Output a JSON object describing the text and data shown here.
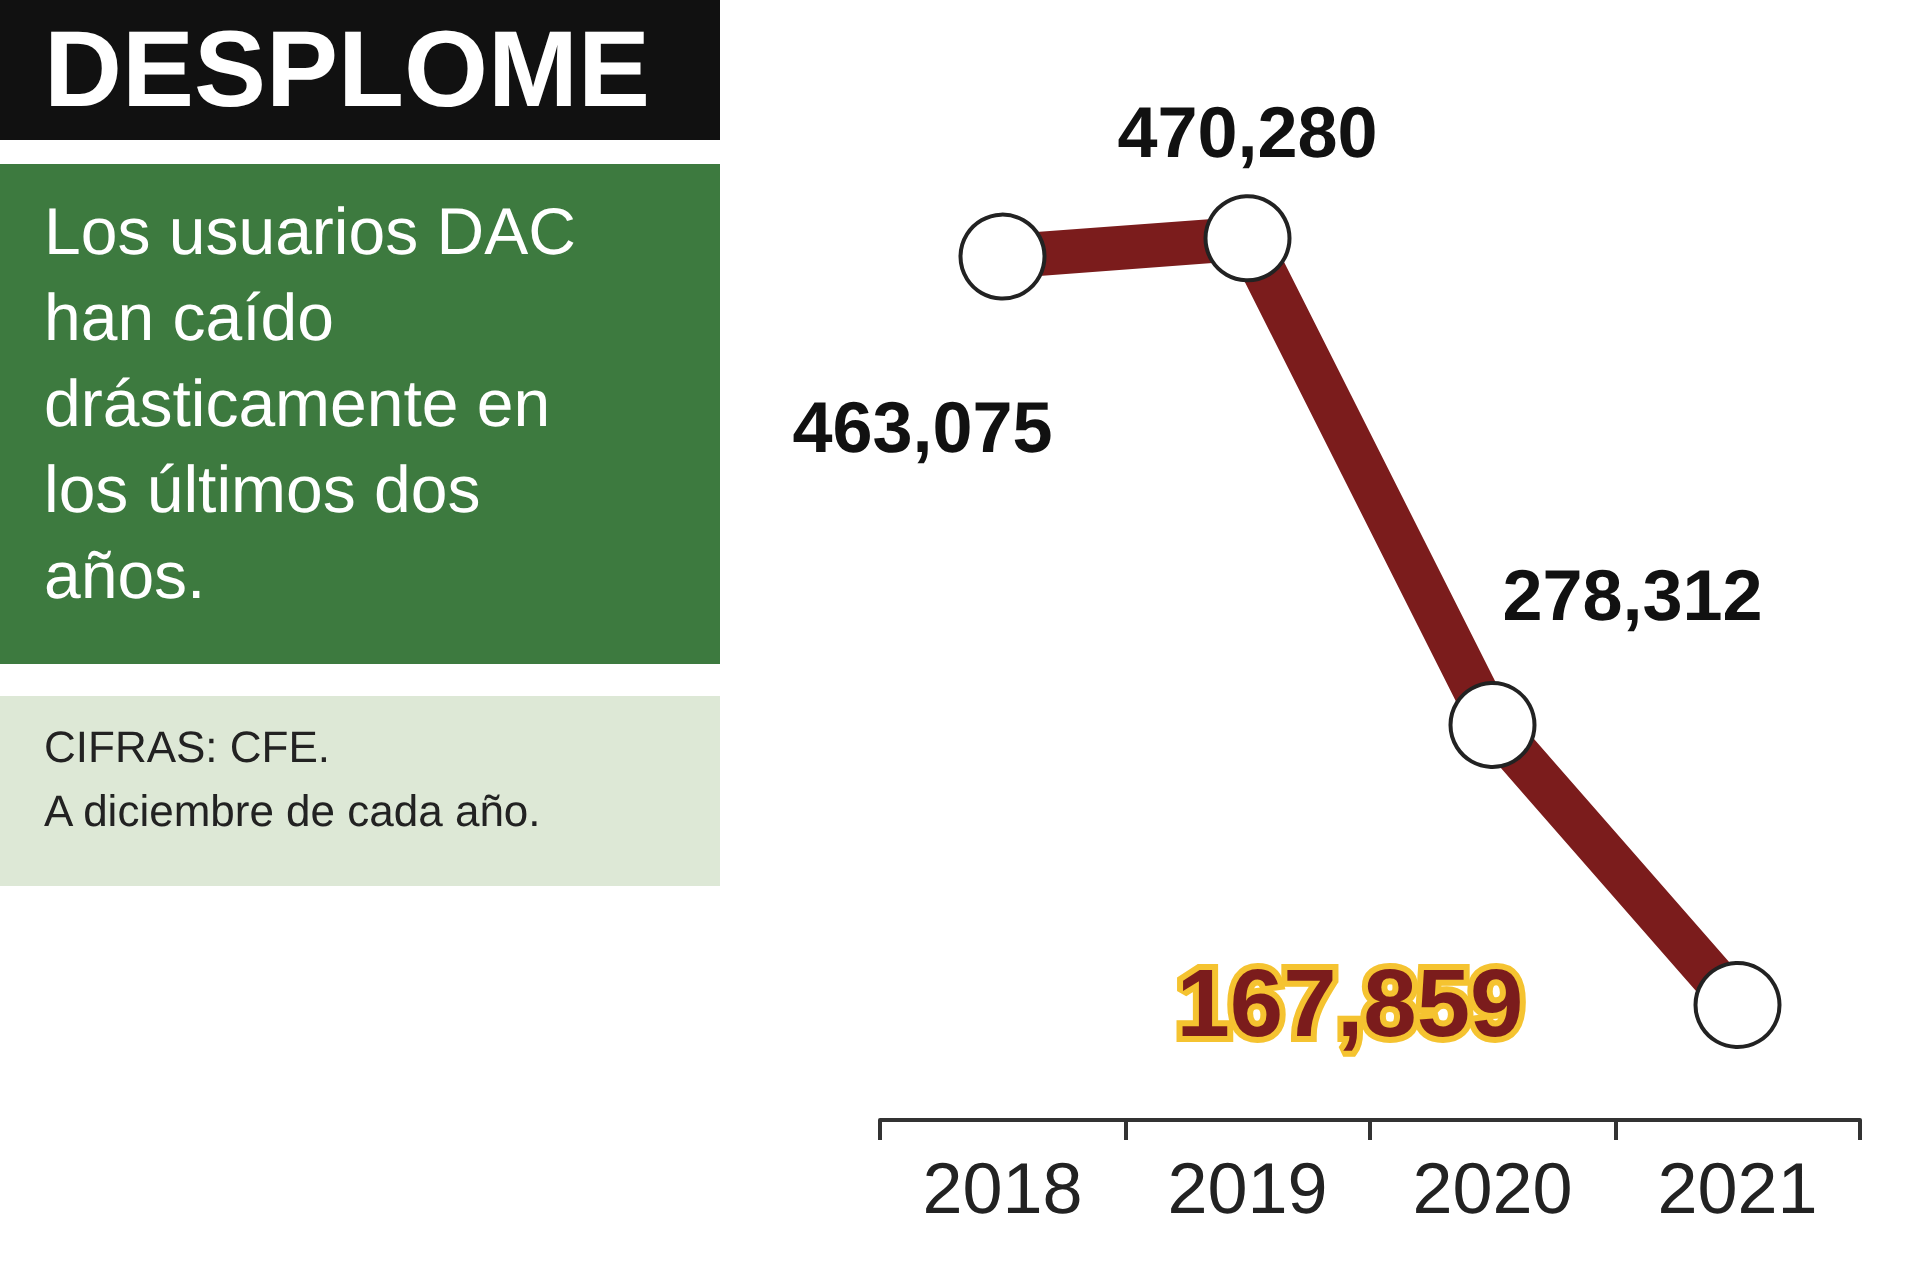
{
  "chart_data": {
    "type": "line",
    "title": "DESPLOME",
    "subtitle": "Los usuarios DAC han caído drásticamente en los últimos dos años.",
    "annotations": [
      "CIFRAS: CFE.",
      "A diciembre de cada año."
    ],
    "categories": [
      "2018",
      "2019",
      "2020",
      "2021"
    ],
    "series": [
      {
        "color": "#7b1c1c",
        "values": [
          463075,
          470280,
          278312,
          167859
        ],
        "value_labels": [
          "463,075",
          "470,280",
          "278,312",
          "167,859"
        ]
      }
    ],
    "marker": "circle",
    "grid": false
  }
}
